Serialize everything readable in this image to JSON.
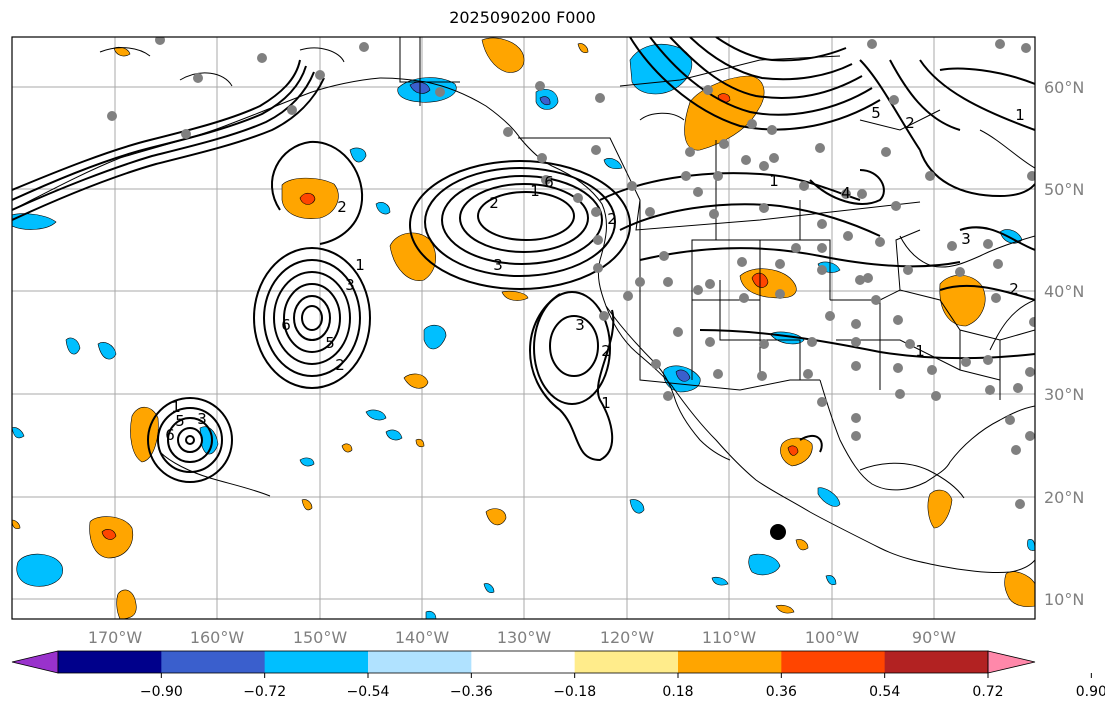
{
  "title": "2025090200 F000",
  "lon_labels": [
    "170°W",
    "160°W",
    "150°W",
    "140°W",
    "130°W",
    "120°W",
    "110°W",
    "100°W",
    "90°W"
  ],
  "lat_labels": [
    "10°N",
    "20°N",
    "30°N",
    "40°N",
    "50°N",
    "60°N"
  ],
  "colorbar": {
    "colors": [
      "#9932cc",
      "#00008b",
      "#3a5fcd",
      "#00bfff",
      "#b0e2ff",
      "#ffffff",
      "#ffec8b",
      "#ffa500",
      "#ff4500",
      "#b22222",
      "#ff88aa"
    ],
    "tick_labels": [
      "−0.90",
      "−0.72",
      "−0.54",
      "−0.36",
      "−0.18",
      "0.18",
      "0.36",
      "0.54",
      "0.72",
      "0.90"
    ]
  },
  "contour_labels": [
    "2",
    "1",
    "6",
    "3",
    "5",
    "2",
    "1",
    "5",
    "3",
    "6",
    "3",
    "2",
    "2",
    "1",
    "3",
    "2",
    "1",
    "6",
    "1",
    "4",
    "2",
    "3",
    "1",
    "5",
    "2",
    "1"
  ],
  "marker_colors": {
    "station": "#808080",
    "storm": "#000000"
  }
}
